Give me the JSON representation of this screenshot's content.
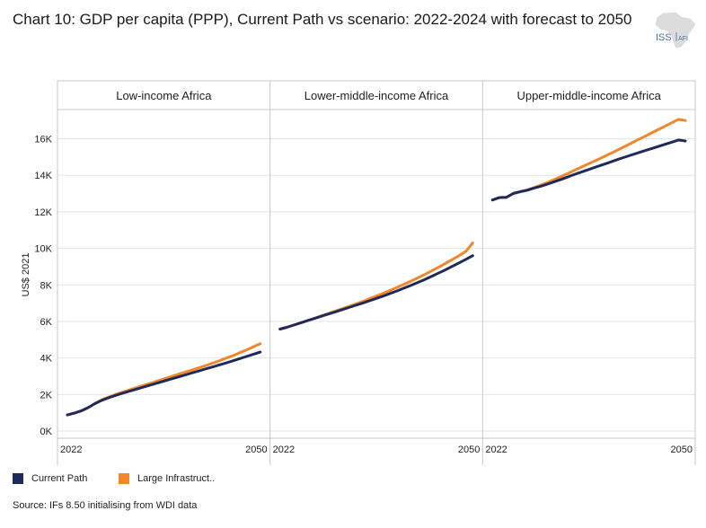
{
  "title": "Chart 10: GDP per capita (PPP), Current Path vs scenario: 2022-2024 with forecast to 2050",
  "logo": {
    "main": "ISS",
    "sub": "AFI"
  },
  "source": "Source: IFs 8.50 initialising from WDI data",
  "colors": {
    "current_path": "#1f2a5c",
    "scenario": "#f0882b",
    "grid": "#e5e5e5",
    "frame": "#c8c8c8"
  },
  "chart_data": {
    "type": "line",
    "ylabel": "US$ 2021",
    "ylim": [
      0,
      17500
    ],
    "yticks": [
      0,
      2000,
      4000,
      6000,
      8000,
      10000,
      12000,
      14000,
      16000
    ],
    "ytick_labels": [
      "0K",
      "2K",
      "4K",
      "6K",
      "8K",
      "10K",
      "12K",
      "14K",
      "16K"
    ],
    "x": [
      2022,
      2023,
      2024,
      2025,
      2026,
      2027,
      2028,
      2029,
      2030,
      2031,
      2032,
      2033,
      2034,
      2035,
      2036,
      2037,
      2038,
      2039,
      2040,
      2041,
      2042,
      2043,
      2044,
      2045,
      2046,
      2047,
      2048,
      2049,
      2050
    ],
    "xtick_labels": [
      "2022",
      "2050"
    ],
    "legend_position": "bottom-left",
    "grid": true,
    "panels": [
      {
        "title": "Low-income Africa",
        "series": [
          {
            "name": "Current Path",
            "values": [
              880,
              980,
              1100,
              1280,
              1500,
              1680,
              1820,
              1950,
              2070,
              2180,
              2290,
              2400,
              2510,
              2620,
              2730,
              2840,
              2950,
              3060,
              3170,
              3280,
              3390,
              3500,
              3610,
              3720,
              3840,
              3960,
              4080,
              4200,
              4320
            ]
          },
          {
            "name": "Large Infrastruct..",
            "values": [
              880,
              980,
              1100,
              1280,
              1510,
              1710,
              1860,
              2000,
              2130,
              2250,
              2370,
              2490,
              2610,
              2730,
              2850,
              2970,
              3090,
              3210,
              3330,
              3450,
              3570,
              3700,
              3840,
              3980,
              4120,
              4280,
              4440,
              4610,
              4780
            ]
          }
        ]
      },
      {
        "title": "Lower-middle-income Africa",
        "series": [
          {
            "name": "Current Path",
            "values": [
              5580,
              5680,
              5800,
              5920,
              6040,
              6160,
              6280,
              6400,
              6520,
              6640,
              6760,
              6880,
              7000,
              7130,
              7260,
              7390,
              7530,
              7670,
              7820,
              7970,
              8130,
              8290,
              8460,
              8640,
              8820,
              9010,
              9200,
              9400,
              9600
            ]
          },
          {
            "name": "Large Infrastruct..",
            "values": [
              5580,
              5680,
              5800,
              5920,
              6040,
              6170,
              6300,
              6430,
              6560,
              6690,
              6820,
              6950,
              7090,
              7240,
              7390,
              7540,
              7700,
              7860,
              8030,
              8200,
              8380,
              8570,
              8760,
              8960,
              9170,
              9380,
              9600,
              9830,
              10300
            ]
          }
        ]
      },
      {
        "title": "Upper-middle-income Africa",
        "series": [
          {
            "name": "Current Path",
            "values": [
              12650,
              12780,
              12790,
              13000,
              13100,
              13180,
              13290,
              13400,
              13520,
              13650,
              13780,
              13920,
              14060,
              14190,
              14320,
              14450,
              14580,
              14710,
              14840,
              14970,
              15090,
              15210,
              15330,
              15450,
              15570,
              15690,
              15810,
              15930,
              15880
            ]
          },
          {
            "name": "Large Infrastruct..",
            "values": [
              12650,
              12780,
              12790,
              13000,
              13100,
              13190,
              13320,
              13460,
              13610,
              13770,
              13940,
              14110,
              14290,
              14460,
              14640,
              14810,
              14990,
              15170,
              15350,
              15540,
              15730,
              15920,
              16110,
              16300,
              16490,
              16680,
              16870,
              17060,
              17000
            ]
          }
        ]
      }
    ]
  }
}
